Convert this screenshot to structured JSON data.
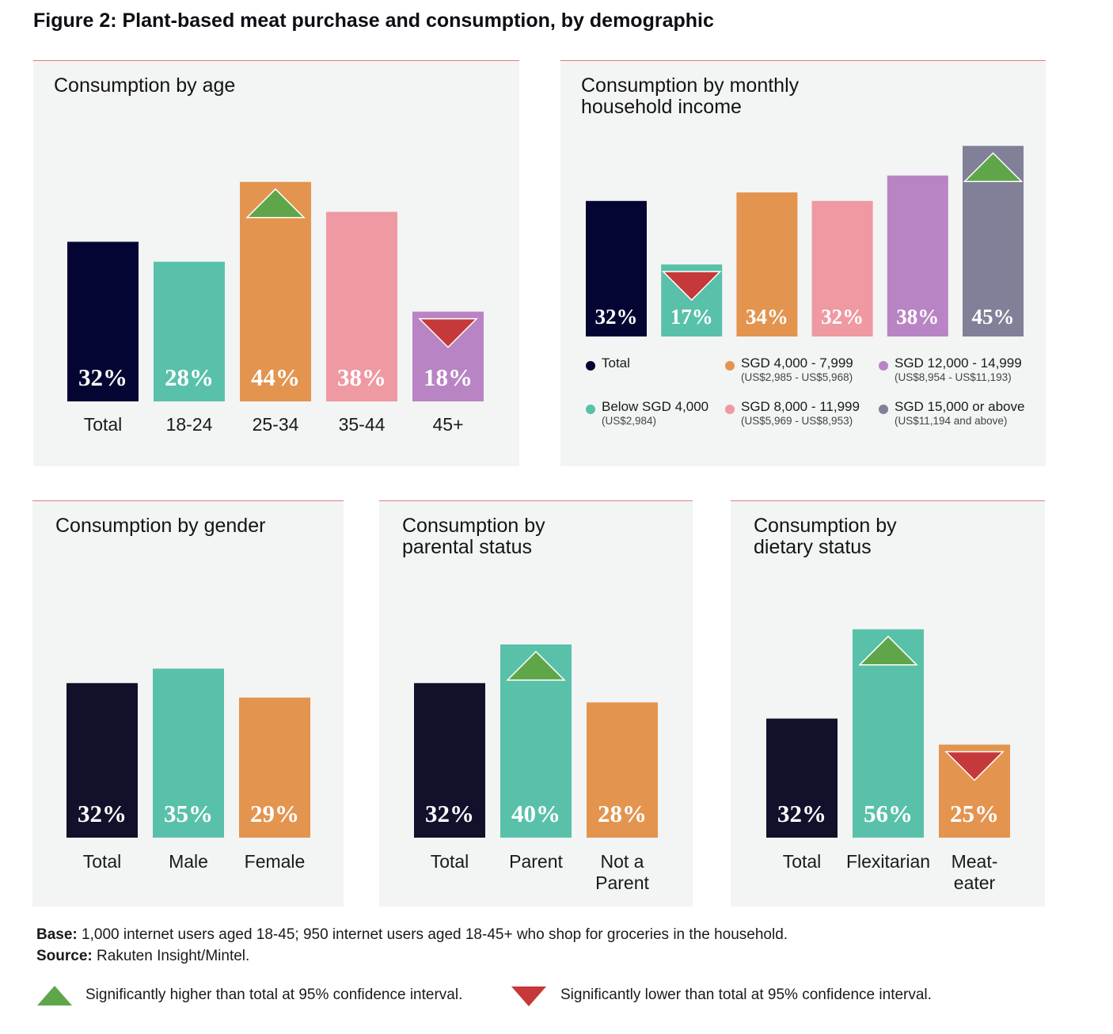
{
  "figure_title": "Figure 2: Plant-based meat purchase and consumption, by demographic",
  "colors": {
    "navy": "#050533",
    "dark_navy": "#11112b",
    "teal": "#59c1aa",
    "orange": "#e3944f",
    "pink": "#ef99a3",
    "purple": "#b984c4",
    "grey": "#818098",
    "up_marker": "#5fa64a",
    "down_marker": "#c5393b"
  },
  "chart_data": [
    {
      "id": "age",
      "type": "bar",
      "title": "Consumption by age",
      "categories": [
        "Total",
        "18-24",
        "25-34",
        "35-44",
        "45+"
      ],
      "values": [
        32,
        28,
        44,
        38,
        18
      ],
      "value_labels": [
        "32%",
        "28%",
        "44%",
        "38%",
        "18%"
      ],
      "colors": [
        "#050533",
        "#59c1aa",
        "#e3944f",
        "#ef99a3",
        "#b984c4"
      ],
      "markers": [
        "",
        "",
        "up",
        "",
        "down"
      ]
    },
    {
      "id": "income",
      "type": "bar",
      "title": "Consumption by monthly household income",
      "categories": [
        "Total",
        "Below SGD 4,000",
        "SGD 4,000 - 7,999",
        "SGD 8,000 - 11,999",
        "SGD 12,000 - 14,999",
        "SGD 15,000 or above"
      ],
      "values": [
        32,
        17,
        34,
        32,
        38,
        45
      ],
      "value_labels": [
        "32%",
        "17%",
        "34%",
        "32%",
        "38%",
        "45%"
      ],
      "colors": [
        "#050533",
        "#59c1aa",
        "#e3944f",
        "#ef99a3",
        "#b984c4",
        "#818098"
      ],
      "markers": [
        "",
        "down",
        "",
        "",
        "",
        "up"
      ],
      "legend": [
        {
          "label": "Total",
          "sub": "",
          "color": "#050533"
        },
        {
          "label": "SGD 4,000 - 7,999",
          "sub": "(US$2,985 - US$5,968)",
          "color": "#e3944f"
        },
        {
          "label": "SGD 12,000 - 14,999",
          "sub": "(US$8,954 - US$11,193)",
          "color": "#b984c4"
        },
        {
          "label": "Below SGD 4,000",
          "sub": "(US$2,984)",
          "color": "#59c1aa"
        },
        {
          "label": "SGD 8,000 - 11,999",
          "sub": "(US$5,969 - US$8,953)",
          "color": "#ef99a3"
        },
        {
          "label": "SGD 15,000 or above",
          "sub": "(US$11,194 and above)",
          "color": "#818098"
        }
      ]
    },
    {
      "id": "gender",
      "type": "bar",
      "title": "Consumption by gender",
      "categories": [
        "Total",
        "Male",
        "Female"
      ],
      "values": [
        32,
        35,
        29
      ],
      "value_labels": [
        "32%",
        "35%",
        "29%"
      ],
      "colors": [
        "#11112b",
        "#59c1aa",
        "#e3944f"
      ],
      "markers": [
        "",
        "",
        ""
      ]
    },
    {
      "id": "parental",
      "type": "bar",
      "title": "Consumption by parental status",
      "categories": [
        "Total",
        "Parent",
        "Not a Parent"
      ],
      "values": [
        32,
        40,
        28
      ],
      "value_labels": [
        "32%",
        "40%",
        "28%"
      ],
      "colors": [
        "#11112b",
        "#59c1aa",
        "#e3944f"
      ],
      "markers": [
        "",
        "up",
        ""
      ]
    },
    {
      "id": "dietary",
      "type": "bar",
      "title": "Consumption by dietary status",
      "categories": [
        "Total",
        "Flexitarian",
        "Meat-eater"
      ],
      "values": [
        32,
        56,
        25
      ],
      "value_labels": [
        "32%",
        "56%",
        "25%"
      ],
      "colors": [
        "#11112b",
        "#59c1aa",
        "#e3944f"
      ],
      "markers": [
        "",
        "up",
        "down"
      ]
    }
  ],
  "notes": {
    "base_label": "Base:",
    "base_text": "1,000 internet users aged 18-45; 950 internet users aged 18-45+ who shop for groceries in the household.",
    "source_label": "Source:",
    "source_text": "Rakuten Insight/Mintel."
  },
  "key": {
    "higher": "Significantly higher than total at 95% confidence interval.",
    "lower": "Significantly lower than total at 95% confidence interval."
  }
}
